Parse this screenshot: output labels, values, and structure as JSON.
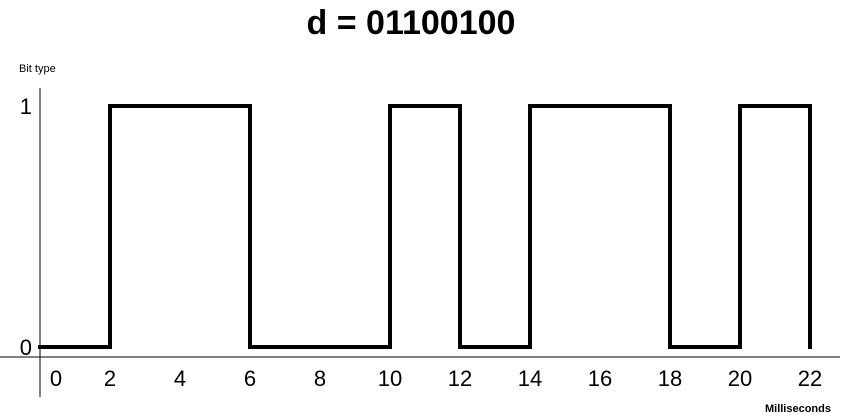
{
  "chart_data": {
    "type": "line",
    "title": "d = 01100100",
    "ylabel": "Bit type",
    "xlabel": "Milliseconds",
    "x_ticks": [
      0,
      2,
      4,
      6,
      8,
      10,
      12,
      14,
      16,
      18,
      20,
      22
    ],
    "y_ticks": [
      0,
      1
    ],
    "xlim": [
      0,
      22
    ],
    "ylim": [
      0,
      1
    ],
    "grid": false,
    "legend": "none",
    "series": [
      {
        "step": "post",
        "x": [
          0,
          2,
          6,
          10,
          12,
          14,
          18,
          20,
          22
        ],
        "y": [
          0,
          1,
          0,
          1,
          0,
          1,
          0,
          1,
          0
        ]
      }
    ]
  }
}
